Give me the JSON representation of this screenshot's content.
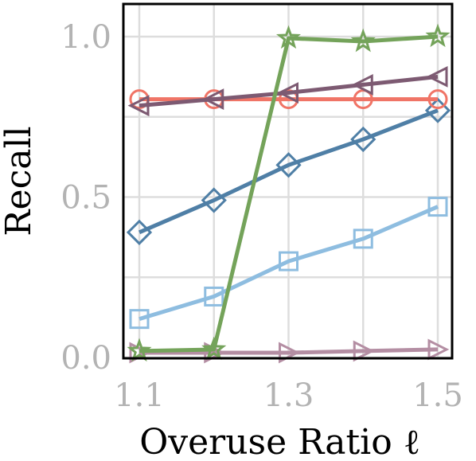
{
  "chart_data": {
    "type": "line",
    "title": "",
    "xlabel": "Overuse Ratio ℓ",
    "ylabel": "Recall",
    "x": [
      1.1,
      1.2,
      1.3,
      1.4,
      1.5
    ],
    "xticks": [
      "1.1",
      "1.3",
      "1.5"
    ],
    "yticks": [
      "0.0",
      "0.5",
      "1.0"
    ],
    "xlim": [
      1.1,
      1.5
    ],
    "ylim": [
      0.0,
      1.0
    ],
    "grid": true,
    "legend": "none",
    "series": [
      {
        "marker": "triangle-right",
        "color": "#b48ea3",
        "values": [
          0.015,
          0.015,
          0.015,
          0.02,
          0.025
        ]
      },
      {
        "marker": "square",
        "color": "#8ebde0",
        "values": [
          0.12,
          0.19,
          0.3,
          0.37,
          0.47
        ]
      },
      {
        "marker": "diamond",
        "color": "#4f7fa6",
        "values": [
          0.39,
          0.49,
          0.6,
          0.68,
          0.77
        ]
      },
      {
        "marker": "circle",
        "color": "#f07466",
        "values": [
          0.805,
          0.805,
          0.805,
          0.805,
          0.805
        ]
      },
      {
        "marker": "triangle-left",
        "color": "#7d5a72",
        "values": [
          0.785,
          0.805,
          0.825,
          0.85,
          0.875
        ]
      },
      {
        "marker": "star",
        "color": "#74a35a",
        "values": [
          0.02,
          0.025,
          0.995,
          0.985,
          1.0
        ]
      }
    ]
  }
}
